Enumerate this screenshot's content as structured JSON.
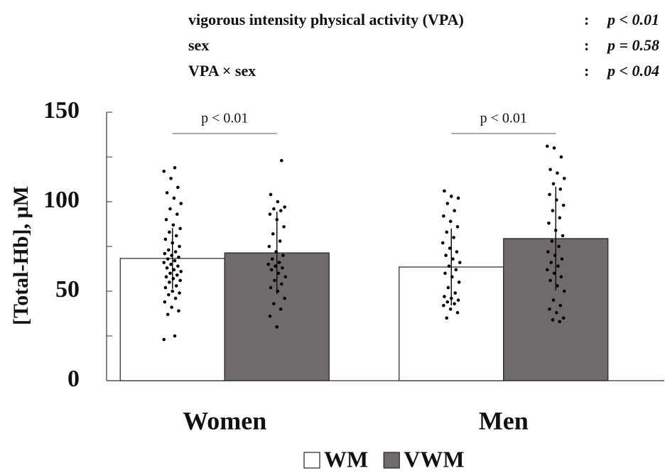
{
  "chart_data": {
    "type": "bar",
    "stats": [
      {
        "label": "vigorous intensity physical activity (VPA)",
        "value": "p < 0.01"
      },
      {
        "label": "sex",
        "value": "p = 0.58"
      },
      {
        "label": "VPA × sex",
        "value": "p < 0.04"
      }
    ],
    "ylabel": "[Total-Hb], μM",
    "categories": [
      "Women",
      "Men"
    ],
    "comparisons": [
      "p < 0.01",
      "p < 0.01"
    ],
    "series": [
      {
        "name": "WM",
        "color": "#ffffff",
        "values": [
          68.3,
          63.5
        ],
        "errors": [
          17,
          21.5
        ],
        "points": [
          [
            23,
            25,
            37,
            39,
            41,
            44,
            46,
            48,
            49,
            50,
            52,
            53,
            55,
            56,
            57,
            58,
            59,
            60,
            61,
            62,
            63,
            64,
            65,
            66,
            67,
            68,
            69,
            70,
            71,
            72,
            73,
            75,
            77,
            79,
            81,
            83,
            85,
            87,
            90,
            93,
            96,
            99,
            102,
            105,
            108,
            113,
            117,
            119
          ],
          [
            35,
            38,
            40,
            42,
            43,
            44,
            45,
            46,
            47,
            49,
            52,
            55,
            58,
            60,
            62,
            64,
            66,
            68,
            70,
            72,
            74,
            77,
            80,
            83,
            86,
            89,
            92,
            95,
            99,
            102,
            103,
            106
          ]
        ]
      },
      {
        "name": "VWM",
        "color": "#706a6a",
        "values": [
          71.4,
          79.4
        ],
        "errors": [
          23,
          29
        ],
        "points": [
          [
            30,
            36,
            40,
            43,
            46,
            50,
            52,
            54,
            56,
            58,
            60,
            62,
            63,
            64,
            65,
            66,
            68,
            70,
            72,
            75,
            78,
            82,
            86,
            90,
            93,
            95,
            96,
            97,
            100,
            104,
            123
          ],
          [
            33,
            34,
            35,
            38,
            40,
            42,
            45,
            50,
            53,
            56,
            58,
            60,
            62,
            64,
            66,
            68,
            70,
            72,
            75,
            78,
            81,
            84,
            88,
            91,
            95,
            98,
            101,
            104,
            107,
            110,
            113,
            116,
            118,
            125,
            130,
            131
          ]
        ]
      }
    ],
    "ylim": [
      0,
      150
    ],
    "yticks": [
      0,
      50,
      100,
      150
    ],
    "yminor_ticks": [
      25,
      75,
      125
    ]
  }
}
